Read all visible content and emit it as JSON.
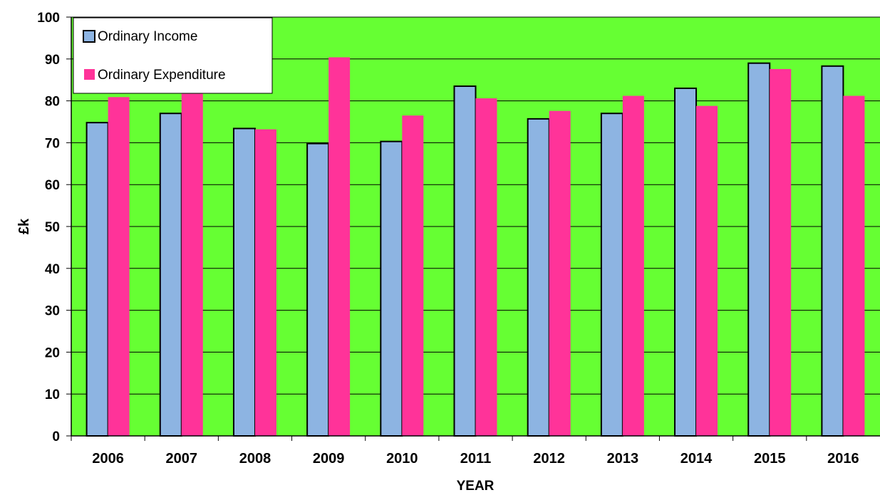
{
  "chart_data": {
    "type": "bar",
    "categories": [
      "2006",
      "2007",
      "2008",
      "2009",
      "2010",
      "2011",
      "2012",
      "2013",
      "2014",
      "2015",
      "2016"
    ],
    "series": [
      {
        "name": "Ordinary Income",
        "color": "#8db4e2",
        "outline": "#000000",
        "values": [
          74.8,
          77.0,
          73.4,
          69.8,
          70.3,
          83.5,
          75.7,
          77.0,
          83.0,
          89.0,
          88.3
        ]
      },
      {
        "name": "Ordinary Expenditure",
        "color": "#ff3399",
        "values": [
          80.9,
          81.7,
          73.2,
          90.4,
          76.5,
          80.6,
          77.6,
          81.2,
          78.8,
          87.6,
          81.2
        ]
      }
    ],
    "xlabel": "YEAR",
    "ylabel": "£k",
    "ylim": [
      0,
      100
    ],
    "yticks": [
      "0",
      "10",
      "20",
      "30",
      "40",
      "50",
      "60",
      "70",
      "80",
      "90",
      "100"
    ],
    "grid": true,
    "plot_background": "#66ff33",
    "legend_position": "top-left"
  }
}
